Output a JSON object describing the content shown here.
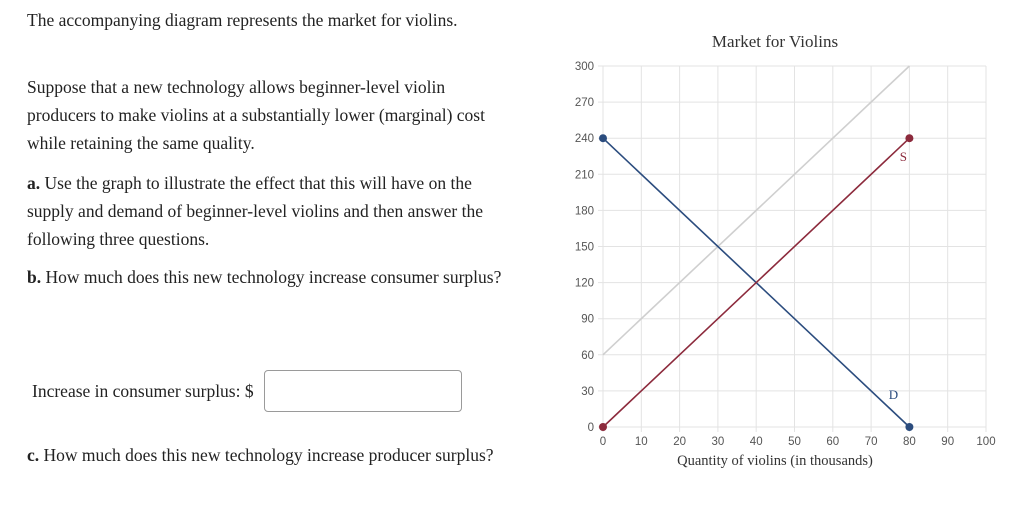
{
  "question": {
    "intro": "The accompanying diagram represents the market for violins.",
    "scenario": "Suppose that a new technology allows beginner-level violin producers to make violins at a substantially lower (marginal) cost while retaining the same quality.",
    "part_a_prefix": "a.",
    "part_a_text": "Use the graph to illustrate the effect that this will have on the supply and demand of beginner-level violins and then answer the following three questions.",
    "part_b_prefix": "b.",
    "part_b_text": "How much does this new technology increase consumer surplus?",
    "answer_label": "Increase in consumer surplus: $",
    "answer_value": "",
    "part_c_prefix": "c.",
    "part_c_text": "How much does this new technology increase producer surplus?"
  },
  "chart_data": {
    "type": "line",
    "title": "Market for Violins",
    "xlabel": "Quantity of violins (in thousands)",
    "ylabel": "",
    "xlim": [
      0,
      100
    ],
    "ylim": [
      0,
      300
    ],
    "xticks": [
      0,
      10,
      20,
      30,
      40,
      50,
      60,
      70,
      80,
      90,
      100
    ],
    "yticks": [
      0,
      30,
      60,
      90,
      120,
      150,
      180,
      210,
      240,
      270,
      300
    ],
    "grid": true,
    "series": [
      {
        "name": "D",
        "x": [
          0,
          80
        ],
        "y": [
          240,
          0
        ],
        "color": "#2b4c7e",
        "endpoints": true
      },
      {
        "name": "S",
        "x": [
          0,
          80
        ],
        "y": [
          0,
          240
        ],
        "color": "#8c2a3c",
        "endpoints": true
      },
      {
        "name": "",
        "x": [
          0,
          80
        ],
        "y": [
          60,
          300
        ],
        "color": "#cfcfcf",
        "endpoints": false
      }
    ]
  }
}
